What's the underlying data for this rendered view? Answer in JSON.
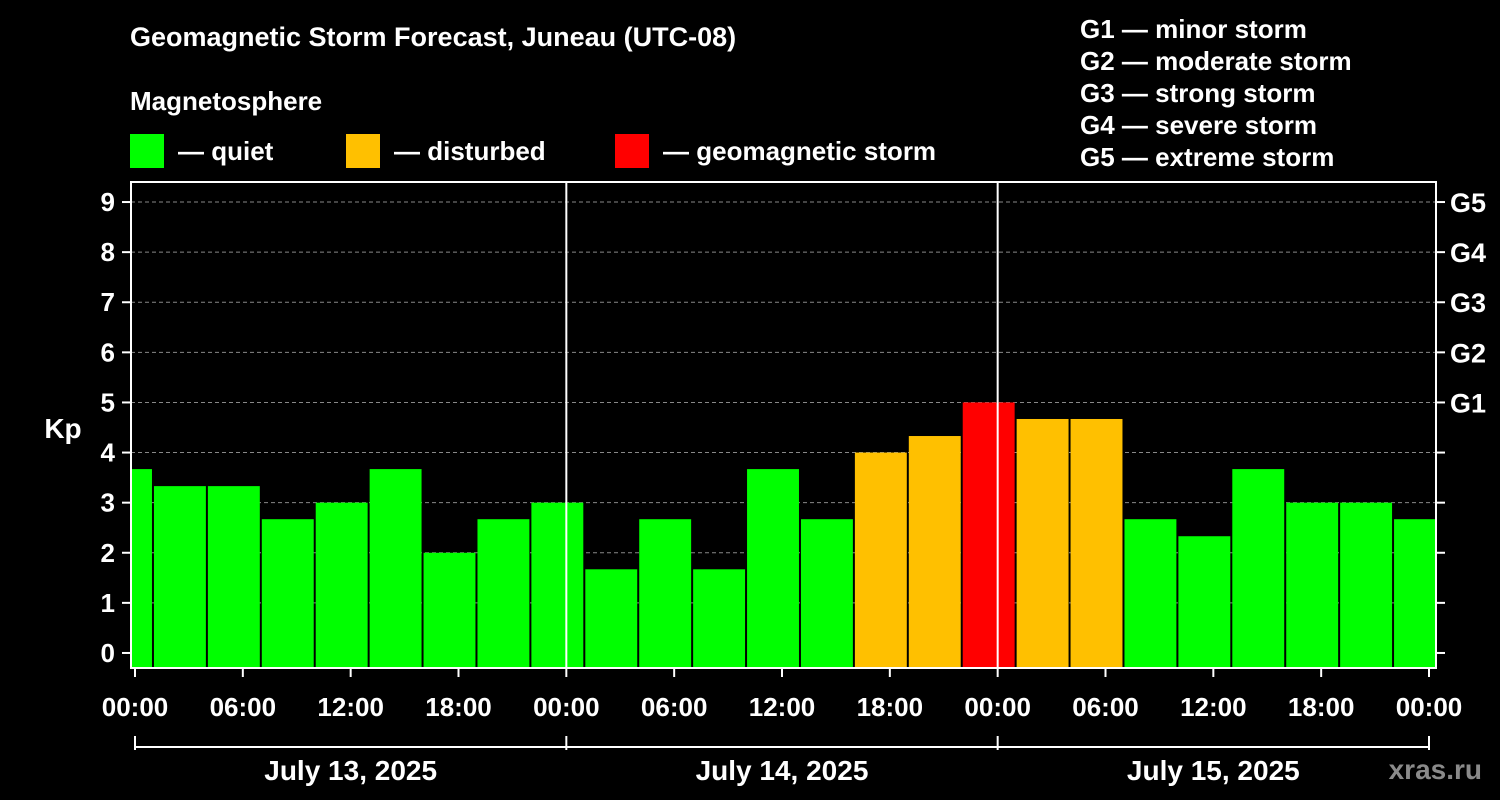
{
  "colors": {
    "quiet": "#00ff00",
    "disturbed": "#ffc000",
    "storm": "#ff0000",
    "background": "#000000",
    "axis": "#ffffff",
    "grid": "#888888",
    "watermark": "#8a8a8a"
  },
  "header": {
    "title": "Geomagnetic Storm Forecast, Juneau (UTC-08)",
    "magnetosphere_label": "Magnetosphere"
  },
  "legend": [
    {
      "key": "quiet",
      "label": "— quiet"
    },
    {
      "key": "disturbed",
      "label": "— disturbed"
    },
    {
      "key": "storm",
      "label": "— geomagnetic storm"
    }
  ],
  "g_scale": [
    "G1 — minor storm",
    "G2 — moderate storm",
    "G3 — strong storm",
    "G4 — severe storm",
    "G5 — extreme storm"
  ],
  "watermark": "xras.ru",
  "chart_data": {
    "type": "bar",
    "title": "Geomagnetic Storm Forecast, Juneau (UTC-08)",
    "ylabel": "Kp",
    "ylim": [
      -0.3,
      9.4
    ],
    "yticks": [
      0,
      1,
      2,
      3,
      4,
      5,
      6,
      7,
      8,
      9
    ],
    "right_axis": [
      {
        "kp": 5,
        "label": "G1"
      },
      {
        "kp": 6,
        "label": "G2"
      },
      {
        "kp": 7,
        "label": "G3"
      },
      {
        "kp": 8,
        "label": "G4"
      },
      {
        "kp": 9,
        "label": "G5"
      }
    ],
    "x_range_hours": [
      0,
      72
    ],
    "x_ticks": [
      {
        "hour": 0,
        "label": "00:00"
      },
      {
        "hour": 6,
        "label": "06:00"
      },
      {
        "hour": 12,
        "label": "12:00"
      },
      {
        "hour": 18,
        "label": "18:00"
      },
      {
        "hour": 24,
        "label": "00:00"
      },
      {
        "hour": 30,
        "label": "06:00"
      },
      {
        "hour": 36,
        "label": "12:00"
      },
      {
        "hour": 42,
        "label": "18:00"
      },
      {
        "hour": 48,
        "label": "00:00"
      },
      {
        "hour": 54,
        "label": "06:00"
      },
      {
        "hour": 60,
        "label": "12:00"
      },
      {
        "hour": 66,
        "label": "18:00"
      },
      {
        "hour": 72,
        "label": "00:00"
      }
    ],
    "day_separators_hours": [
      24,
      48
    ],
    "days": [
      {
        "label": "July 13, 2025",
        "start_hour": 0,
        "end_hour": 24
      },
      {
        "label": "July 14, 2025",
        "start_hour": 24,
        "end_hour": 48
      },
      {
        "label": "July 15, 2025",
        "start_hour": 48,
        "end_hour": 72
      }
    ],
    "series": [
      {
        "name": "Kp",
        "bars": [
          {
            "start": -2,
            "end": 1,
            "kp": 3.67,
            "status": "quiet"
          },
          {
            "start": 1,
            "end": 4,
            "kp": 3.33,
            "status": "quiet"
          },
          {
            "start": 4,
            "end": 7,
            "kp": 3.33,
            "status": "quiet"
          },
          {
            "start": 7,
            "end": 10,
            "kp": 2.67,
            "status": "quiet"
          },
          {
            "start": 10,
            "end": 13,
            "kp": 3.0,
            "status": "quiet"
          },
          {
            "start": 13,
            "end": 16,
            "kp": 3.67,
            "status": "quiet"
          },
          {
            "start": 16,
            "end": 19,
            "kp": 2.0,
            "status": "quiet"
          },
          {
            "start": 19,
            "end": 22,
            "kp": 2.67,
            "status": "quiet"
          },
          {
            "start": 22,
            "end": 25,
            "kp": 3.0,
            "status": "quiet"
          },
          {
            "start": 25,
            "end": 28,
            "kp": 1.67,
            "status": "quiet"
          },
          {
            "start": 28,
            "end": 31,
            "kp": 2.67,
            "status": "quiet"
          },
          {
            "start": 31,
            "end": 34,
            "kp": 1.67,
            "status": "quiet"
          },
          {
            "start": 34,
            "end": 37,
            "kp": 3.67,
            "status": "quiet"
          },
          {
            "start": 37,
            "end": 40,
            "kp": 2.67,
            "status": "quiet"
          },
          {
            "start": 40,
            "end": 43,
            "kp": 4.0,
            "status": "disturbed"
          },
          {
            "start": 43,
            "end": 46,
            "kp": 4.33,
            "status": "disturbed"
          },
          {
            "start": 46,
            "end": 49,
            "kp": 5.0,
            "status": "storm"
          },
          {
            "start": 49,
            "end": 52,
            "kp": 4.67,
            "status": "disturbed"
          },
          {
            "start": 52,
            "end": 55,
            "kp": 4.67,
            "status": "disturbed"
          },
          {
            "start": 55,
            "end": 58,
            "kp": 2.67,
            "status": "quiet"
          },
          {
            "start": 58,
            "end": 61,
            "kp": 2.33,
            "status": "quiet"
          },
          {
            "start": 61,
            "end": 64,
            "kp": 3.67,
            "status": "quiet"
          },
          {
            "start": 64,
            "end": 67,
            "kp": 3.0,
            "status": "quiet"
          },
          {
            "start": 67,
            "end": 70,
            "kp": 3.0,
            "status": "quiet"
          },
          {
            "start": 70,
            "end": 73,
            "kp": 2.67,
            "status": "quiet"
          }
        ]
      }
    ]
  }
}
